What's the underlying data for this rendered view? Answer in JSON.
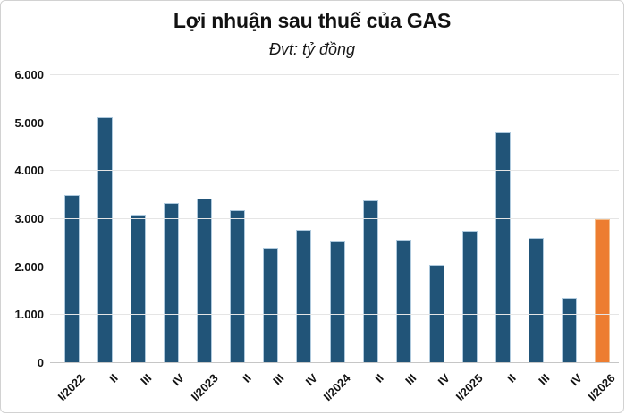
{
  "chart_data": {
    "type": "bar",
    "title": "Lợi nhuận sau thuế của GAS",
    "subtitle": "Đvt: tỷ đồng",
    "unit": "tỷ đồng",
    "categories": [
      "I/2022",
      "II",
      "III",
      "IV",
      "I/2023",
      "II",
      "III",
      "IV",
      "I/2024",
      "II",
      "III",
      "IV",
      "I/2025",
      "II",
      "III",
      "IV",
      "I/2026"
    ],
    "values": [
      3500,
      5130,
      3090,
      3340,
      3420,
      3190,
      2400,
      2770,
      2540,
      3400,
      2570,
      2050,
      2750,
      4800,
      2600,
      1360,
      3000
    ],
    "ylim": [
      0,
      6000
    ],
    "ytick_interval": 1000,
    "ytick_labels": [
      "0",
      "1.000",
      "2.000",
      "3.000",
      "4.000",
      "5.000",
      "6.000"
    ],
    "grid": "horizontal",
    "legend": "none",
    "xlabel": "",
    "ylabel": "",
    "bar_color": "#215478",
    "bar_border_color": "#aec9dd",
    "highlight_index": 16,
    "highlight_category": "I/2026",
    "highlight_color": "#ED7D31",
    "highlight_border_color": "#f3bd8c",
    "gridline_color": "#e5e5e5",
    "baseline_color": "#c6c6c6",
    "text_color": "#121212",
    "background_color": "#ffffff"
  }
}
